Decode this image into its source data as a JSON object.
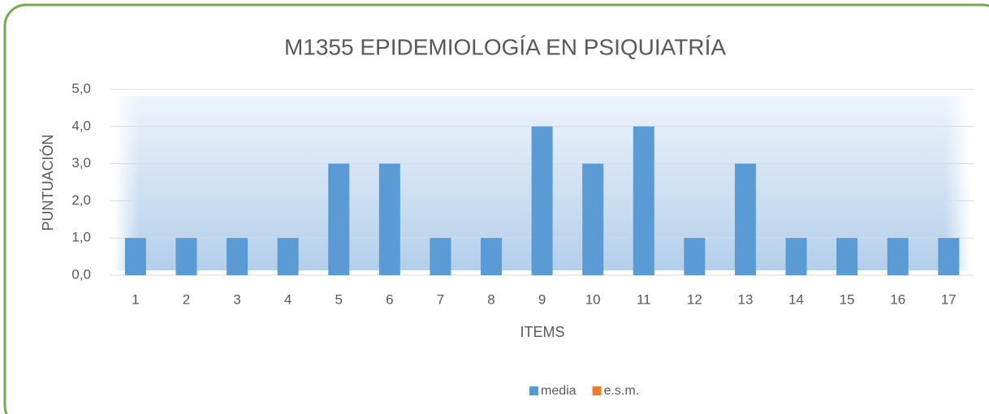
{
  "chart_data": {
    "type": "bar",
    "title": "M1355 EPIDEMIOLOGÍA EN PSIQUIATRÍA",
    "x_label": "ITEMS",
    "y_label": "PUNTUACIÓN",
    "categories": [
      "1",
      "2",
      "3",
      "4",
      "5",
      "6",
      "7",
      "8",
      "9",
      "10",
      "11",
      "12",
      "13",
      "14",
      "15",
      "16",
      "17"
    ],
    "series": [
      {
        "name": "media",
        "color": "#5b9bd5",
        "values": [
          1,
          1,
          1,
          1,
          3,
          3,
          1,
          1,
          4,
          3,
          4,
          1,
          3,
          1,
          1,
          1,
          1
        ]
      },
      {
        "name": "e.s.m.",
        "color": "#ed7d31",
        "values": [
          0,
          0,
          0,
          0,
          0,
          0,
          0,
          0,
          0,
          0,
          0,
          0,
          0,
          0,
          0,
          0,
          0
        ]
      }
    ],
    "ylim": [
      0,
      5
    ],
    "yticks": [
      {
        "value": 0,
        "label": "0,0"
      },
      {
        "value": 1,
        "label": "1,0"
      },
      {
        "value": 2,
        "label": "2,0"
      },
      {
        "value": 3,
        "label": "3,0"
      },
      {
        "value": 4,
        "label": "4,0"
      },
      {
        "value": 5,
        "label": "5,0"
      }
    ],
    "grid": true,
    "legend": "bottom"
  }
}
